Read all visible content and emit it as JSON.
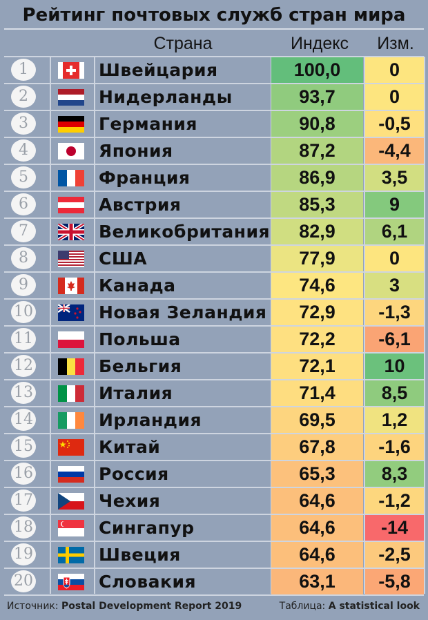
{
  "title": "Рейтинг почтовых служб стран мира",
  "headers": {
    "country": "Страна",
    "index": "Индекс",
    "change": "Изм."
  },
  "footer": {
    "source_label": "Источник:",
    "source_value": "Postal Development Report 2019",
    "table_label": "Таблица:",
    "table_value": "A statistical look"
  },
  "chart_data": {
    "type": "table",
    "title": "Рейтинг почтовых служб стран мира",
    "columns": [
      "Страна",
      "Индекс",
      "Изм."
    ],
    "rows": [
      {
        "rank": "1",
        "flag": "switzerland-flag-icon",
        "country": "Швейцария",
        "index": "100,0",
        "change": "0",
        "index_color": "#63be7b",
        "change_color": "#fde57f"
      },
      {
        "rank": "2",
        "flag": "netherlands-flag-icon",
        "country": "Нидерланды",
        "index": "93,7",
        "change": "0",
        "index_color": "#90cb7e",
        "change_color": "#fde57f"
      },
      {
        "rank": "3",
        "flag": "germany-flag-icon",
        "country": "Германия",
        "index": "90,8",
        "change": "-0,5",
        "index_color": "#9ccf7f",
        "change_color": "#fee07f"
      },
      {
        "rank": "4",
        "flag": "japan-flag-icon",
        "country": "Япония",
        "index": "87,2",
        "change": "-4,4",
        "index_color": "#b2d580",
        "change_color": "#fbb77a"
      },
      {
        "rank": "5",
        "flag": "france-flag-icon",
        "country": "Франция",
        "index": "86,9",
        "change": "3,5",
        "index_color": "#b6d680",
        "change_color": "#d2de81"
      },
      {
        "rank": "6",
        "flag": "austria-flag-icon",
        "country": "Австрия",
        "index": "85,3",
        "change": "9",
        "index_color": "#c0d981",
        "change_color": "#84c97d"
      },
      {
        "rank": "7",
        "flag": "uk-flag-icon",
        "country": "Великобритания",
        "index": "82,9",
        "change": "6,1",
        "index_color": "#d0de81",
        "change_color": "#b0d480"
      },
      {
        "rank": "8",
        "flag": "usa-flag-icon",
        "country": "США",
        "index": "77,9",
        "change": "0",
        "index_color": "#ebe482",
        "change_color": "#fde57f"
      },
      {
        "rank": "9",
        "flag": "canada-flag-icon",
        "country": "Канада",
        "index": "74,6",
        "change": "3",
        "index_color": "#fde681",
        "change_color": "#d8df81"
      },
      {
        "rank": "10",
        "flag": "new-zealand-flag-icon",
        "country": "Новая Зеландия",
        "index": "72,9",
        "change": "-1,3",
        "index_color": "#fee281",
        "change_color": "#fdd67e"
      },
      {
        "rank": "11",
        "flag": "poland-flag-icon",
        "country": "Польша",
        "index": "72,2",
        "change": "-6,1",
        "index_color": "#fee081",
        "change_color": "#faa474"
      },
      {
        "rank": "12",
        "flag": "belgium-flag-icon",
        "country": "Бельгия",
        "index": "72,1",
        "change": "10",
        "index_color": "#fedf80",
        "change_color": "#6bc17c"
      },
      {
        "rank": "13",
        "flag": "italy-flag-icon",
        "country": "Италия",
        "index": "71,4",
        "change": "8,5",
        "index_color": "#fedd80",
        "change_color": "#8fcb7e"
      },
      {
        "rank": "14",
        "flag": "ireland-flag-icon",
        "country": "Ирландия",
        "index": "69,5",
        "change": "1,2",
        "index_color": "#fdd57f",
        "change_color": "#f0e380"
      },
      {
        "rank": "15",
        "flag": "china-flag-icon",
        "country": "Китай",
        "index": "67,8",
        "change": "-1,6",
        "index_color": "#fdcd7e",
        "change_color": "#fdd47e"
      },
      {
        "rank": "16",
        "flag": "russia-flag-icon",
        "country": "Россия",
        "index": "65,3",
        "change": "8,3",
        "index_color": "#fcc17c",
        "change_color": "#92cc7e"
      },
      {
        "rank": "17",
        "flag": "czech-flag-icon",
        "country": "Чехия",
        "index": "64,6",
        "change": "-1,2",
        "index_color": "#fcbf7b",
        "change_color": "#fdd77e"
      },
      {
        "rank": "18",
        "flag": "singapore-flag-icon",
        "country": "Сингапур",
        "index": "64,6",
        "change": "-14",
        "index_color": "#fcbf7b",
        "change_color": "#f8696b"
      },
      {
        "rank": "19",
        "flag": "sweden-flag-icon",
        "country": "Швеция",
        "index": "64,6",
        "change": "-2,5",
        "index_color": "#fcbf7b",
        "change_color": "#fcc97d"
      },
      {
        "rank": "20",
        "flag": "slovakia-flag-icon",
        "country": "Словакия",
        "index": "63,1",
        "change": "-5,8",
        "index_color": "#fbb77a",
        "change_color": "#fba775"
      }
    ]
  }
}
